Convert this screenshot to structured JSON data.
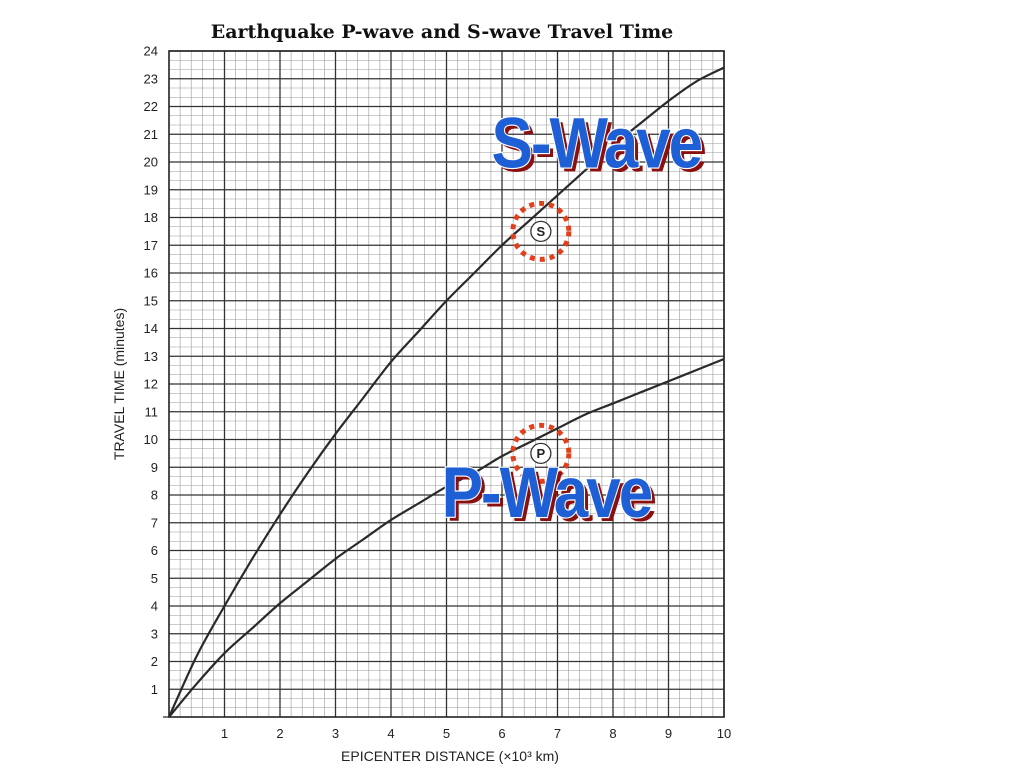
{
  "chart_data": {
    "type": "line",
    "title": "Earthquake P-wave and S-wave Travel Time",
    "xlabel": "EPICENTER DISTANCE (×10³ km)",
    "ylabel": "TRAVEL TIME (minutes)",
    "xlim": [
      0,
      10
    ],
    "ylim": [
      0,
      24
    ],
    "x_ticks": [
      1,
      2,
      3,
      4,
      5,
      6,
      7,
      8,
      9,
      10
    ],
    "y_ticks": [
      1,
      2,
      3,
      4,
      5,
      6,
      7,
      8,
      9,
      10,
      11,
      12,
      13,
      14,
      15,
      16,
      17,
      18,
      19,
      20,
      21,
      22,
      23,
      24
    ],
    "x_minor_step": 0.2,
    "y_minor_step": 0.333,
    "grid": true,
    "series": [
      {
        "id": "s-wave",
        "x": [
          0,
          0.5,
          1,
          1.5,
          2,
          2.5,
          3,
          3.5,
          4,
          4.5,
          5,
          5.5,
          6,
          6.5,
          7,
          7.5,
          8,
          8.5,
          9,
          9.5,
          10
        ],
        "values": [
          0,
          2.2,
          4.0,
          5.7,
          7.3,
          8.8,
          10.2,
          11.5,
          12.8,
          13.9,
          15.0,
          16.0,
          17.0,
          17.9,
          18.8,
          19.7,
          20.6,
          21.4,
          22.2,
          22.9,
          23.4
        ],
        "color": "#2a2a2a"
      },
      {
        "id": "p-wave",
        "x": [
          0,
          0.5,
          1,
          1.5,
          2,
          2.5,
          3,
          3.5,
          4,
          4.5,
          5,
          5.5,
          6,
          6.5,
          7,
          7.5,
          8,
          8.5,
          9,
          9.5,
          10
        ],
        "values": [
          0,
          1.2,
          2.3,
          3.2,
          4.1,
          4.9,
          5.7,
          6.4,
          7.1,
          7.7,
          8.3,
          8.8,
          9.4,
          9.9,
          10.4,
          10.9,
          11.3,
          11.7,
          12.1,
          12.5,
          12.9
        ],
        "color": "#2a2a2a"
      }
    ],
    "markers": [
      {
        "letter": "S",
        "x": 6.7,
        "y": 17.5
      },
      {
        "letter": "P",
        "x": 6.7,
        "y": 9.5
      }
    ],
    "annotations": [
      {
        "text": "S-Wave",
        "x": 7.7,
        "y": 19.8,
        "fill": "#1f5fd6",
        "stroke": "#8a1010"
      },
      {
        "text": "P-Wave",
        "x": 6.8,
        "y": 7.2,
        "fill": "#1f5fd6",
        "stroke": "#8a1010"
      }
    ],
    "marker_ring_color": "#e2401c"
  }
}
